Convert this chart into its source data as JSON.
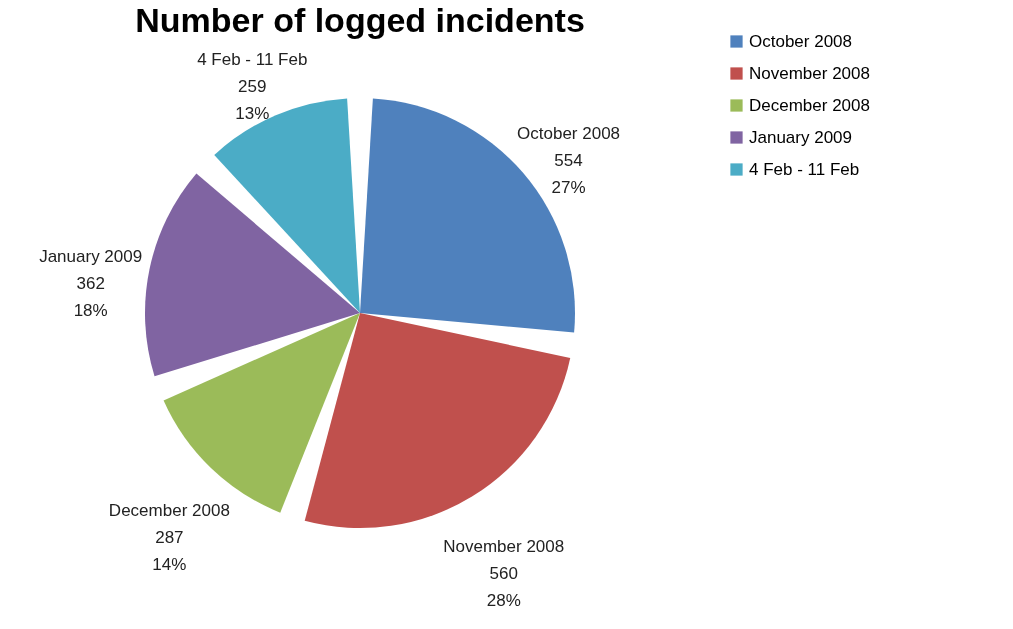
{
  "chart_data": {
    "type": "pie",
    "title": "Number of logged incidents",
    "categories": [
      "October 2008",
      "November 2008",
      "December 2008",
      "January 2009",
      "4 Feb - 11 Feb"
    ],
    "values": [
      554,
      560,
      287,
      362,
      259
    ],
    "colors": [
      "#4f81bd",
      "#c0504d",
      "#9bbb59",
      "#8064a2",
      "#4bacc6"
    ],
    "value_labels": [
      "554\n27%",
      "560\n28%",
      "287\n14%",
      "362\n18%",
      "259\n13%"
    ],
    "legend": "right"
  }
}
